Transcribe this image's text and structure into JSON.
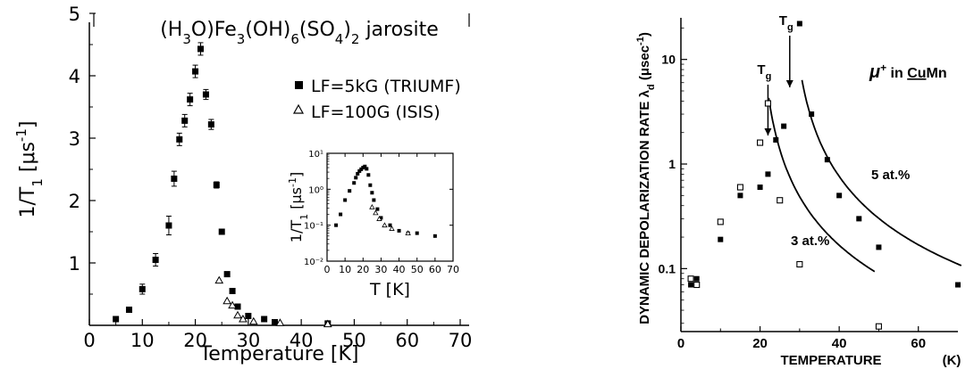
{
  "chart_data": [
    {
      "type": "scatter",
      "title": "(H3O)Fe3(OH)6(SO4)2 jarosite",
      "xlabel": "Temperature [K]",
      "ylabel": "1/T1 [μs⁻¹]",
      "xlim": [
        0,
        70
      ],
      "ylim": [
        0,
        5
      ],
      "xticks": [
        0,
        10,
        20,
        30,
        40,
        50,
        60,
        70
      ],
      "yticks": [
        1,
        2,
        3,
        4,
        5
      ],
      "legend_position": "top-right",
      "series": [
        {
          "name": "LF=5kG (TRIUMF)",
          "marker": "filled-square",
          "x": [
            5,
            7.5,
            10,
            12.5,
            15,
            16,
            17,
            18,
            19,
            20,
            21,
            22,
            23,
            24,
            25,
            26,
            27,
            28,
            30,
            33,
            35,
            45
          ],
          "y": [
            0.1,
            0.25,
            0.58,
            1.05,
            1.6,
            2.35,
            2.98,
            3.28,
            3.62,
            4.07,
            4.43,
            3.7,
            3.22,
            2.25,
            1.5,
            0.82,
            0.55,
            0.3,
            0.15,
            0.1,
            0.05,
            0.03
          ],
          "yerr": [
            0,
            0,
            0.08,
            0.1,
            0.15,
            0.12,
            0.1,
            0.1,
            0.1,
            0.1,
            0.1,
            0.08,
            0.08,
            0.05,
            0,
            0,
            0,
            0,
            0,
            0,
            0,
            0
          ]
        },
        {
          "name": "LF=100G (ISIS)",
          "marker": "open-triangle",
          "x": [
            24.5,
            26,
            27,
            28,
            29,
            31,
            36,
            45
          ],
          "y": [
            0.72,
            0.39,
            0.32,
            0.16,
            0.1,
            0.06,
            0.04,
            0.02
          ]
        }
      ]
    },
    {
      "type": "scatter",
      "inset_of": 0,
      "xlabel": "T [K]",
      "ylabel": "1/T1 [μs⁻¹]",
      "xlim": [
        0,
        70
      ],
      "ylim": [
        0.01,
        10
      ],
      "yscale": "log",
      "xticks": [
        0,
        10,
        20,
        30,
        40,
        50,
        60,
        70
      ],
      "yticks": [
        0.01,
        0.1,
        1,
        10
      ],
      "ytick_labels": [
        "10⁻²",
        "10⁻¹",
        "10⁰",
        "10¹"
      ],
      "series": [
        {
          "marker": "filled-square",
          "x": [
            5,
            7.5,
            10,
            12.5,
            15,
            16,
            17,
            18,
            19,
            20,
            21,
            22,
            23,
            24,
            25,
            26,
            28,
            30,
            35,
            40,
            45,
            50,
            60
          ],
          "y": [
            0.1,
            0.2,
            0.5,
            0.9,
            1.5,
            2.1,
            2.7,
            3.2,
            3.6,
            4.0,
            4.3,
            3.7,
            2.5,
            1.3,
            0.8,
            0.5,
            0.28,
            0.16,
            0.1,
            0.07,
            0.06,
            0.06,
            0.05
          ]
        },
        {
          "marker": "open-triangle",
          "x": [
            25,
            27,
            29,
            32,
            36,
            45
          ],
          "y": [
            0.32,
            0.22,
            0.15,
            0.1,
            0.08,
            0.06
          ]
        }
      ]
    },
    {
      "type": "scatter",
      "xlabel": "TEMPERATURE",
      "xunit": "(K)",
      "ylabel": "DYNAMIC DEPOLARIZATION RATE λd (μsec⁻¹)",
      "xlim": [
        0,
        70
      ],
      "ylim": [
        0.025,
        25
      ],
      "yscale": "log",
      "xticks": [
        0,
        20,
        40,
        60
      ],
      "ytick_labels": [
        "0.1",
        "1",
        "10"
      ],
      "yticks": [
        0.1,
        1,
        10
      ],
      "annotation_title": "μ⁺ in CuMn",
      "arrows": [
        {
          "label": "Tg",
          "x": 22
        },
        {
          "label": "Tg",
          "x": 27.5
        }
      ],
      "curve_labels": [
        "3 at.%",
        "5 at.%"
      ],
      "series": [
        {
          "name": "5 at.%",
          "marker": "filled-square",
          "x": [
            2.5,
            4,
            10,
            15,
            20,
            22,
            24,
            26,
            30,
            33,
            37,
            40,
            45,
            50,
            70
          ],
          "y": [
            0.07,
            0.08,
            0.19,
            0.5,
            0.6,
            0.8,
            1.7,
            2.3,
            22,
            3.0,
            1.1,
            0.5,
            0.3,
            0.16,
            0.07
          ]
        },
        {
          "name": "3 at.%",
          "marker": "open-square",
          "x": [
            2.5,
            4,
            10,
            15,
            20,
            22,
            25,
            30,
            50
          ],
          "y": [
            0.08,
            0.07,
            0.28,
            0.6,
            1.6,
            3.8,
            0.45,
            0.11,
            0.028
          ]
        }
      ]
    }
  ]
}
